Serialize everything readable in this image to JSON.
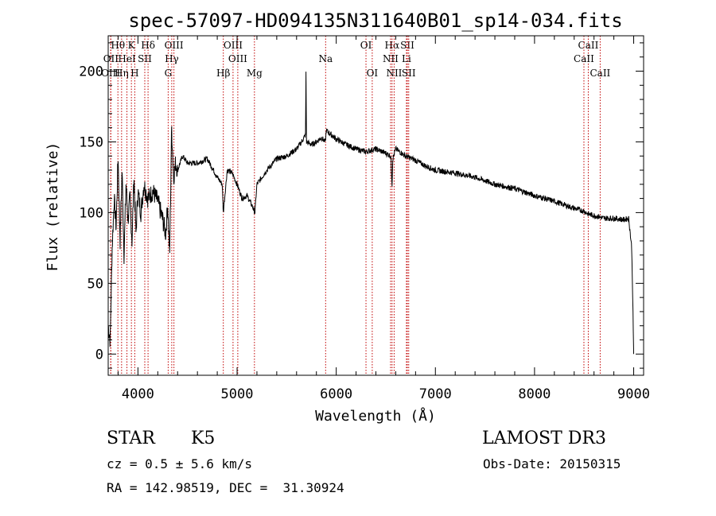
{
  "chart_data": {
    "type": "line",
    "title": "spec-57097-HD094135N311640B01_sp14-034.fits",
    "xlabel": "Wavelength (Å)",
    "ylabel": "Flux (relative)",
    "xlim": [
      3700,
      9100
    ],
    "ylim": [
      -15,
      225
    ],
    "xticks": [
      4000,
      5000,
      6000,
      7000,
      8000,
      9000
    ],
    "yticks": [
      0,
      50,
      100,
      150,
      200
    ],
    "grid": false,
    "series": [
      {
        "name": "flux",
        "x": [
          3700,
          3720,
          3740,
          3760,
          3780,
          3800,
          3820,
          3840,
          3860,
          3880,
          3900,
          3920,
          3940,
          3960,
          3980,
          4000,
          4030,
          4060,
          4100,
          4150,
          4200,
          4250,
          4280,
          4300,
          4320,
          4340,
          4360,
          4380,
          4400,
          4450,
          4500,
          4600,
          4700,
          4800,
          4850,
          4861,
          4900,
          4950,
          5000,
          5050,
          5100,
          5150,
          5180,
          5200,
          5250,
          5300,
          5400,
          5500,
          5600,
          5650,
          5690,
          5695,
          5700,
          5750,
          5800,
          5850,
          5890,
          5900,
          5950,
          6000,
          6050,
          6100,
          6200,
          6300,
          6400,
          6500,
          6550,
          6563,
          6570,
          6600,
          6700,
          6800,
          6900,
          7000,
          7200,
          7400,
          7600,
          7800,
          8000,
          8200,
          8400,
          8500,
          8542,
          8600,
          8700,
          8800,
          8900,
          8950,
          8980,
          8990,
          9000
        ],
        "values": [
          20,
          10,
          75,
          110,
          90,
          140,
          80,
          130,
          70,
          120,
          95,
          110,
          80,
          125,
          85,
          115,
          100,
          120,
          110,
          115,
          108,
          95,
          85,
          105,
          70,
          160,
          125,
          135,
          130,
          140,
          135,
          135,
          138,
          125,
          120,
          100,
          130,
          128,
          120,
          110,
          112,
          105,
          100,
          120,
          125,
          130,
          138,
          140,
          145,
          150,
          155,
          200,
          150,
          148,
          150,
          153,
          150,
          158,
          155,
          152,
          150,
          148,
          145,
          143,
          145,
          142,
          140,
          120,
          138,
          145,
          140,
          137,
          133,
          130,
          128,
          125,
          120,
          117,
          112,
          108,
          103,
          101,
          99,
          98,
          96,
          96,
          95,
          96,
          75,
          40,
          0
        ]
      }
    ],
    "lines": [
      {
        "label": "Hθ",
        "x": 3798,
        "row": 1
      },
      {
        "label": "OII",
        "x": 3727,
        "row": 2
      },
      {
        "label": "OIII",
        "x": 3725,
        "row": 3
      },
      {
        "label": "K",
        "x": 3934,
        "row": 1
      },
      {
        "label": "HeI",
        "x": 3889,
        "row": 2
      },
      {
        "label": "Hη",
        "x": 3835,
        "row": 3
      },
      {
        "label": "H",
        "x": 3968,
        "row": 3
      },
      {
        "label": "SII",
        "x": 4069,
        "row": 2
      },
      {
        "label": "Hδ",
        "x": 4102,
        "row": 1
      },
      {
        "label": "OIII",
        "x": 4363,
        "row": 1
      },
      {
        "label": "Hγ",
        "x": 4341,
        "row": 2
      },
      {
        "label": "G",
        "x": 4305,
        "row": 3
      },
      {
        "label": "OIII",
        "x": 4959,
        "row": 1
      },
      {
        "label": "OIII",
        "x": 5007,
        "row": 2
      },
      {
        "label": "Hβ",
        "x": 4861,
        "row": 3
      },
      {
        "label": "Mg",
        "x": 5175,
        "row": 3
      },
      {
        "label": "Na",
        "x": 5893,
        "row": 2
      },
      {
        "label": "OI",
        "x": 6300,
        "row": 1
      },
      {
        "label": "OI",
        "x": 6363,
        "row": 3
      },
      {
        "label": "Hα",
        "x": 6563,
        "row": 1
      },
      {
        "label": "NII",
        "x": 6548,
        "row": 2
      },
      {
        "label": "NII",
        "x": 6584,
        "row": 3
      },
      {
        "label": "SII",
        "x": 6717,
        "row": 1
      },
      {
        "label": "Li",
        "x": 6708,
        "row": 2
      },
      {
        "label": "SII",
        "x": 6731,
        "row": 3
      },
      {
        "label": "CaII",
        "x": 8542,
        "row": 1
      },
      {
        "label": "CaII",
        "x": 8498,
        "row": 2
      },
      {
        "label": "CaII",
        "x": 8662,
        "row": 3
      }
    ]
  },
  "info": {
    "class": "STAR",
    "subclass": "K5",
    "survey": "LAMOST DR3",
    "cz": "cz = 0.5 ± 5.6 km/s",
    "obs_date": "Obs-Date: 20150315",
    "coords": "RA = 142.98519, DEC =  31.30924"
  }
}
